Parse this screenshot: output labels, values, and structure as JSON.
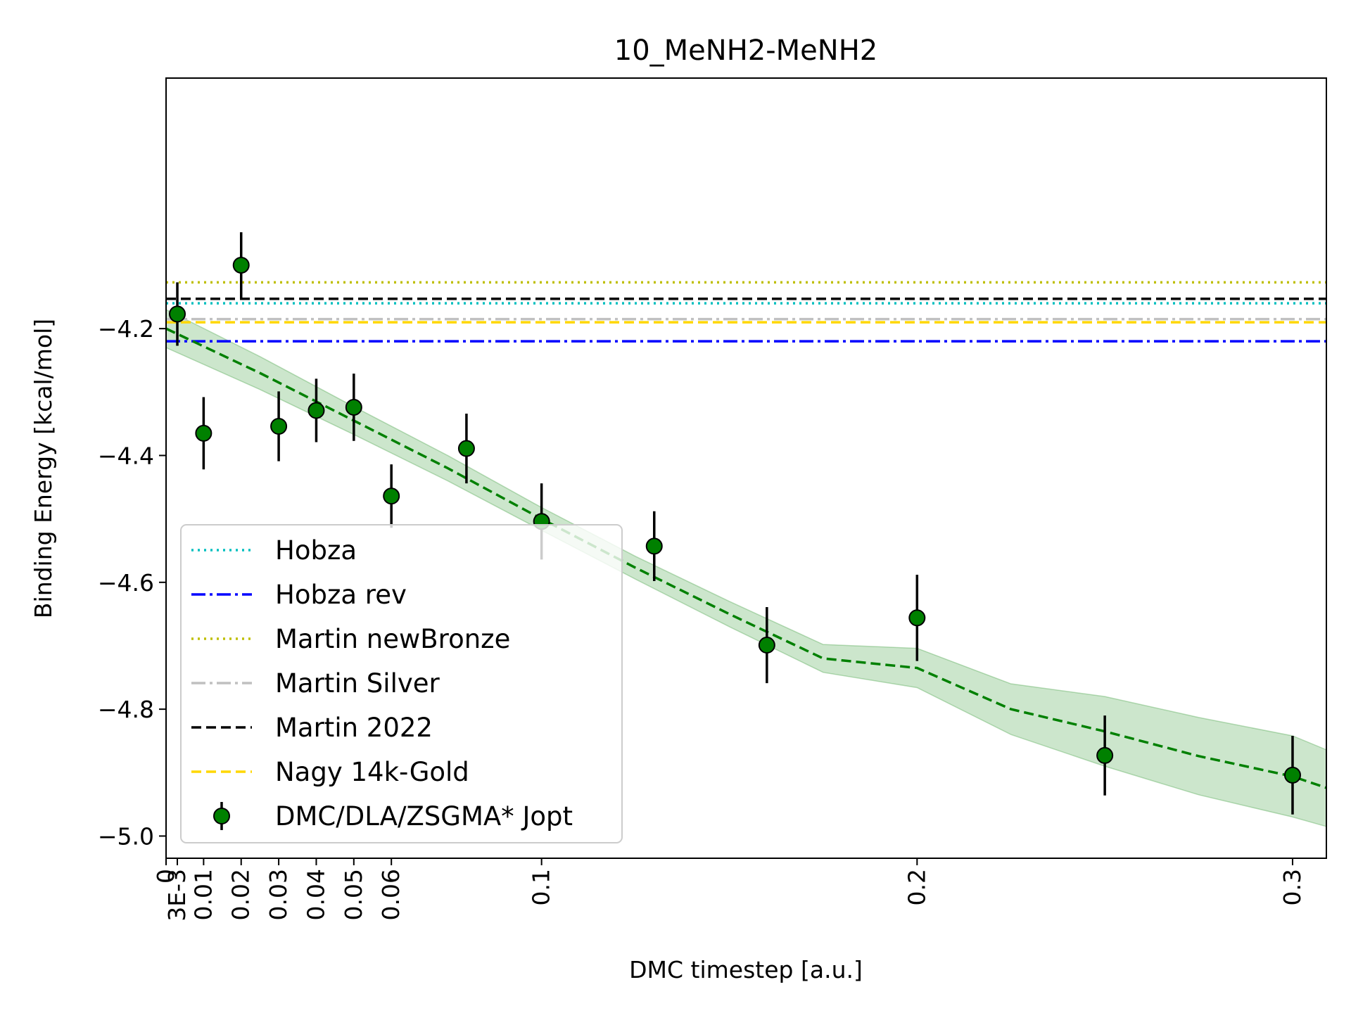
{
  "chart_data": {
    "type": "scatter",
    "title": "10_MeNH2-MeNH2",
    "xlabel": "DMC timestep [a.u.]",
    "ylabel": "Binding Energy [kcal/mol]",
    "xlim": [
      0,
      0.309
    ],
    "ylim": [
      -5.035,
      -3.805
    ],
    "x_ticks": [
      {
        "value": 0,
        "label": "0"
      },
      {
        "value": 0.003,
        "label": "3E-3"
      },
      {
        "value": 0.01,
        "label": "0.01"
      },
      {
        "value": 0.02,
        "label": "0.02"
      },
      {
        "value": 0.03,
        "label": "0.03"
      },
      {
        "value": 0.04,
        "label": "0.04"
      },
      {
        "value": 0.05,
        "label": "0.05"
      },
      {
        "value": 0.06,
        "label": "0.06"
      },
      {
        "value": 0.1,
        "label": "0.1"
      },
      {
        "value": 0.2,
        "label": "0.2"
      },
      {
        "value": 0.3,
        "label": "0.3"
      }
    ],
    "y_ticks": [
      {
        "value": -4.2,
        "label": "−4.2"
      },
      {
        "value": -4.4,
        "label": "−4.4"
      },
      {
        "value": -4.6,
        "label": "−4.6"
      },
      {
        "value": -4.8,
        "label": "−4.8"
      },
      {
        "value": -5.0,
        "label": "−5.0"
      }
    ],
    "grid": false,
    "legend_position": "lower-left",
    "reference_lines": [
      {
        "name": "Hobza",
        "y": -4.16,
        "color": "#00bfbf",
        "style": "dotted"
      },
      {
        "name": "Hobza rev",
        "y": -4.22,
        "color": "#0000ff",
        "style": "dashdot"
      },
      {
        "name": "Martin newBronze",
        "y": -4.127,
        "color": "#bfbf00",
        "style": "dotted"
      },
      {
        "name": "Martin Silver",
        "y": -4.185,
        "color": "#c0c0c0",
        "style": "dashdot"
      },
      {
        "name": "Martin 2022",
        "y": -4.153,
        "color": "#000000",
        "style": "dashed"
      },
      {
        "name": "Nagy 14k-Gold",
        "y": -4.19,
        "color": "#ffd700",
        "style": "dashed"
      }
    ],
    "series": [
      {
        "name": "DMC/DLA/ZSGMA* Jopt",
        "color": "#008000",
        "x": [
          0.003,
          0.01,
          0.02,
          0.03,
          0.04,
          0.05,
          0.06,
          0.08,
          0.1,
          0.13,
          0.16,
          0.2,
          0.25,
          0.3
        ],
        "y": [
          -4.177,
          -4.365,
          -4.1,
          -4.354,
          -4.329,
          -4.324,
          -4.464,
          -4.389,
          -4.504,
          -4.543,
          -4.699,
          -4.656,
          -4.873,
          -4.904
        ],
        "yerr": [
          0.05,
          0.057,
          0.052,
          0.055,
          0.05,
          0.053,
          0.05,
          0.055,
          0.06,
          0.055,
          0.06,
          0.068,
          0.063,
          0.062
        ]
      }
    ],
    "fit": {
      "color": "#008000",
      "style": "dashed",
      "band_color": "#008000",
      "x": [
        0,
        0.025,
        0.05,
        0.075,
        0.1,
        0.125,
        0.15,
        0.175,
        0.2,
        0.225,
        0.25,
        0.275,
        0.3,
        0.309
      ],
      "y": [
        -4.2,
        -4.27,
        -4.345,
        -4.42,
        -4.5,
        -4.577,
        -4.65,
        -4.72,
        -4.735,
        -4.8,
        -4.835,
        -4.874,
        -4.906,
        -4.924
      ],
      "lower": [
        -4.23,
        -4.296,
        -4.367,
        -4.44,
        -4.518,
        -4.595,
        -4.67,
        -4.742,
        -4.766,
        -4.84,
        -4.89,
        -4.935,
        -4.97,
        -4.985
      ],
      "upper": [
        -4.17,
        -4.244,
        -4.323,
        -4.4,
        -4.482,
        -4.559,
        -4.63,
        -4.698,
        -4.704,
        -4.76,
        -4.78,
        -4.813,
        -4.842,
        -4.864
      ]
    }
  }
}
